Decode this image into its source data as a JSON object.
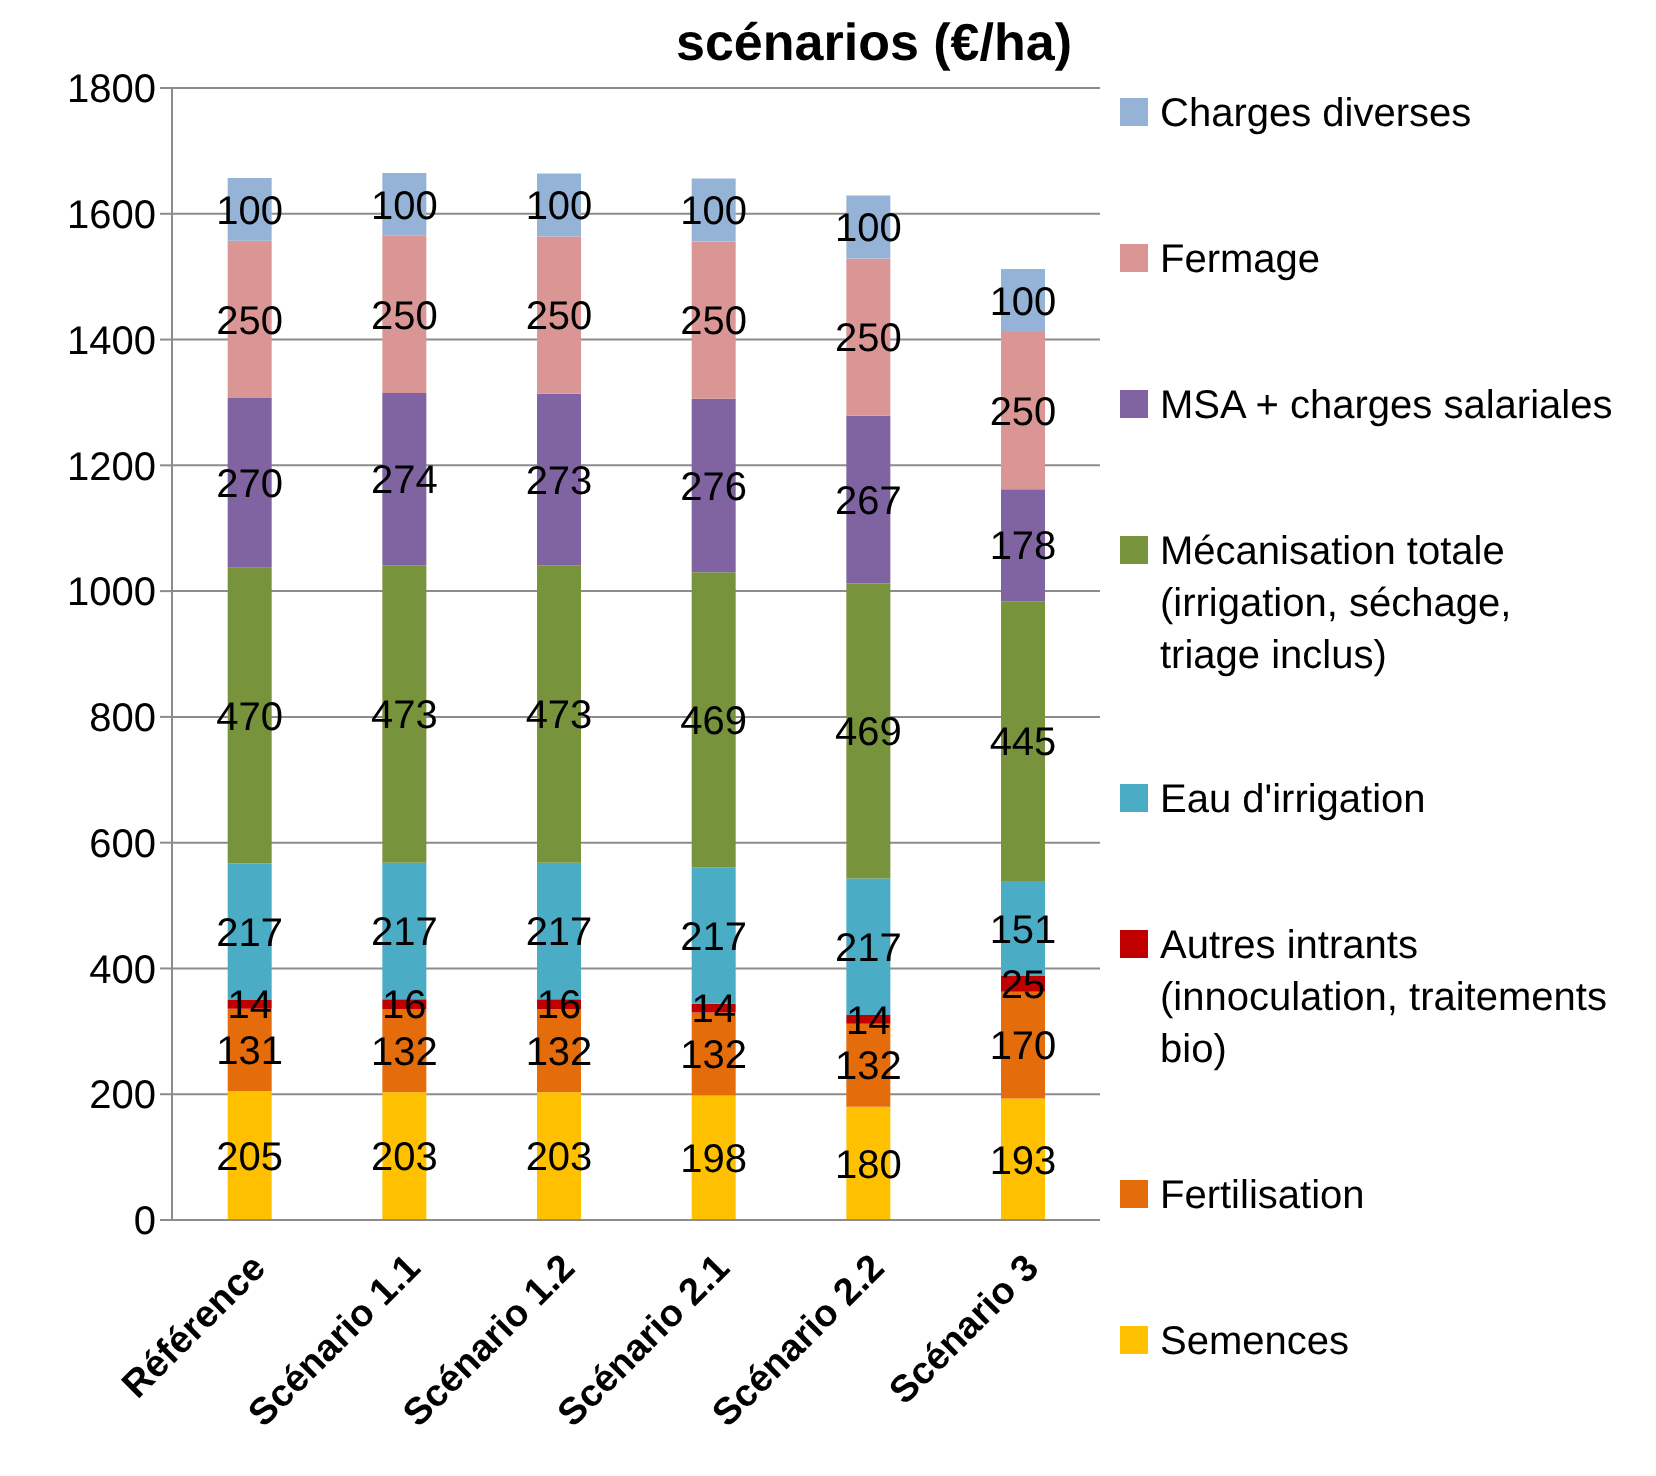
{
  "chart_data": {
    "type": "bar",
    "title": "scénarios (€/ha)",
    "stacked": true,
    "data_labels": true,
    "grid": "y",
    "legend": "right",
    "categories": [
      "Référence",
      "Scénario 1.1",
      "Scénario 1.2",
      "Scénario 2.1",
      "Scénario 2.2",
      "Scénario 3"
    ],
    "ylim": [
      0,
      1800
    ],
    "yticks": [
      0,
      200,
      400,
      600,
      800,
      1000,
      1200,
      1400,
      1600,
      1800
    ],
    "series": [
      {
        "name": "Semences",
        "color": "#ffc000",
        "values": [
          205,
          203,
          203,
          198,
          180,
          193
        ]
      },
      {
        "name": "Fertilisation",
        "color": "#e46c0a",
        "values": [
          131,
          132,
          132,
          132,
          132,
          170
        ]
      },
      {
        "name": "Autres intrants (innoculation, traitements bio)",
        "color": "#c00000",
        "values": [
          14,
          16,
          16,
          14,
          14,
          25
        ]
      },
      {
        "name": "Eau d'irrigation",
        "color": "#4bacc6",
        "values": [
          217,
          217,
          217,
          217,
          217,
          151
        ]
      },
      {
        "name": "Mécanisation totale (irrigation, séchage, triage inclus)",
        "color": "#77933c",
        "values": [
          470,
          473,
          473,
          469,
          469,
          445
        ]
      },
      {
        "name": "MSA + charges salariales",
        "color": "#8064a2",
        "values": [
          270,
          274,
          273,
          276,
          267,
          178
        ]
      },
      {
        "name": "Fermage",
        "color": "#d99694",
        "values": [
          250,
          250,
          250,
          250,
          250,
          250
        ]
      },
      {
        "name": "Charges diverses",
        "color": "#95b3d7",
        "values": [
          100,
          100,
          100,
          100,
          100,
          100
        ]
      }
    ]
  }
}
